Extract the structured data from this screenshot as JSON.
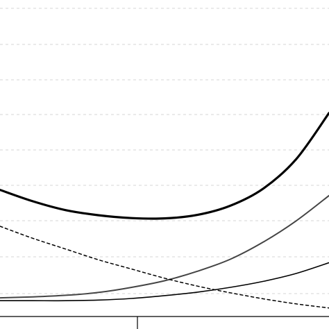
{
  "chart_data": {
    "type": "line",
    "title": "",
    "xlabel": "",
    "ylabel": "",
    "grid": {
      "horizontal": true,
      "style": "dashed"
    },
    "xlim": [
      0,
      100
    ],
    "ylim": [
      0,
      100
    ],
    "series": [
      {
        "style": "thick-solid",
        "color": "#000000",
        "x": [
          0,
          10,
          20,
          30,
          40,
          50,
          60,
          70,
          80,
          90,
          100
        ],
        "y": [
          40.0,
          36.4,
          33.6,
          32.0,
          31.1,
          31.0,
          32.1,
          35.0,
          40.4,
          49.7,
          64.3
        ]
      },
      {
        "style": "medium-solid",
        "color": "#444444",
        "x": [
          0,
          10,
          20,
          30,
          40,
          50,
          60,
          70,
          80,
          90,
          100
        ],
        "y": [
          5.9,
          6.2,
          6.7,
          7.6,
          9.2,
          11.3,
          14.3,
          18.1,
          23.5,
          30.2,
          38.2
        ]
      },
      {
        "style": "thin-solid",
        "color": "#000000",
        "x": [
          0,
          10,
          20,
          30,
          40,
          50,
          60,
          70,
          80,
          90,
          100
        ],
        "y": [
          5.0,
          5.0,
          5.0,
          5.2,
          5.7,
          6.6,
          7.7,
          9.2,
          11.1,
          13.6,
          17.0
        ]
      },
      {
        "style": "dashed",
        "color": "#000000",
        "x": [
          0,
          10,
          20,
          30,
          40,
          50,
          60,
          70,
          80,
          90,
          100
        ],
        "y": [
          28.5,
          24.7,
          21.3,
          17.9,
          15.0,
          12.1,
          9.6,
          7.5,
          5.6,
          4.0,
          2.7
        ]
      }
    ]
  }
}
